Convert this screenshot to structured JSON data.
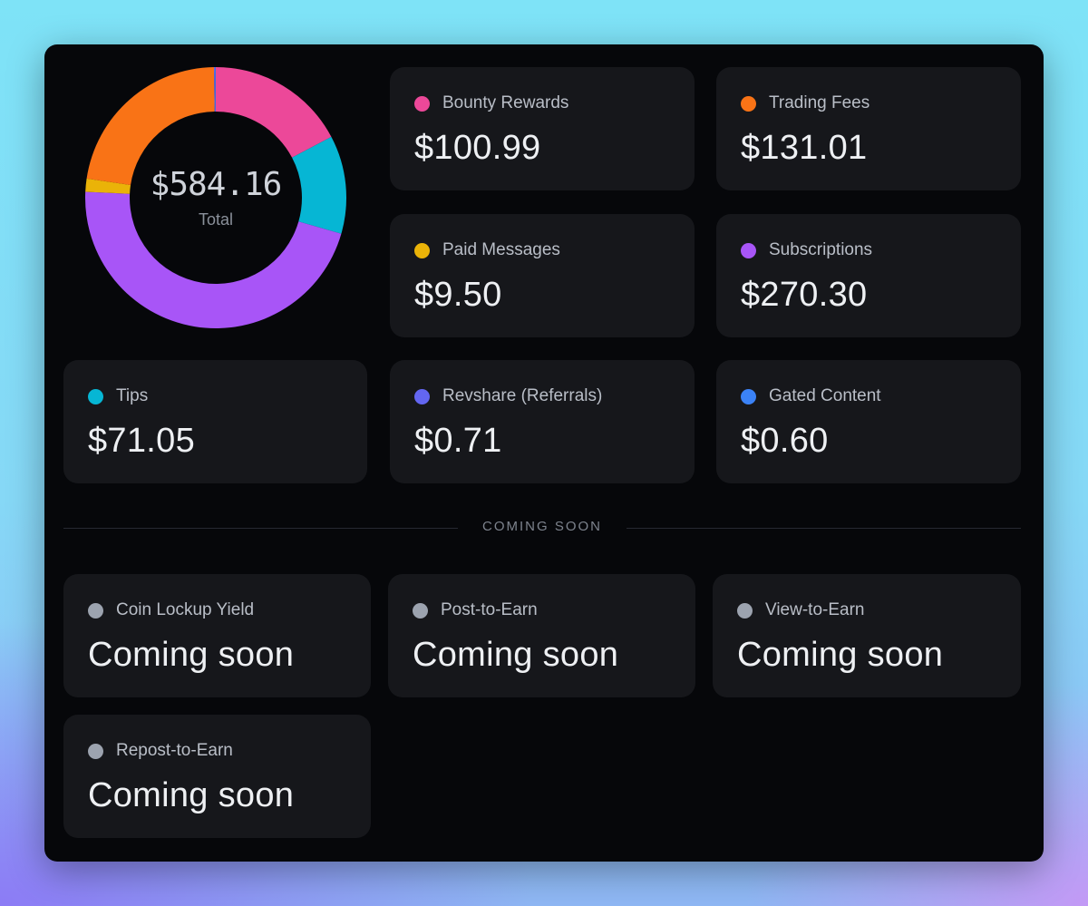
{
  "chart_data": {
    "type": "pie",
    "total_display": "$584.16",
    "total_label": "Total",
    "slices": [
      {
        "name": "Bounty Rewards",
        "value": 100.99,
        "color": "#ec4899"
      },
      {
        "name": "Tips",
        "value": 71.05,
        "color": "#06b6d4"
      },
      {
        "name": "Subscriptions",
        "value": 270.3,
        "color": "#a855f7"
      },
      {
        "name": "Paid Messages",
        "value": 9.5,
        "color": "#eab308"
      },
      {
        "name": "Trading Fees",
        "value": 131.01,
        "color": "#f97316"
      },
      {
        "name": "Revshare (Referrals)",
        "value": 0.71,
        "color": "#6366f1"
      },
      {
        "name": "Gated Content",
        "value": 0.6,
        "color": "#3b82f6"
      }
    ]
  },
  "cards": {
    "bounty": {
      "label": "Bounty Rewards",
      "value": "$100.99",
      "color": "#ec4899"
    },
    "trading": {
      "label": "Trading Fees",
      "value": "$131.01",
      "color": "#f97316"
    },
    "paid": {
      "label": "Paid Messages",
      "value": "$9.50",
      "color": "#eab308"
    },
    "subs": {
      "label": "Subscriptions",
      "value": "$270.30",
      "color": "#a855f7"
    },
    "tips": {
      "label": "Tips",
      "value": "$71.05",
      "color": "#06b6d4"
    },
    "revshare": {
      "label": "Revshare (Referrals)",
      "value": "$0.71",
      "color": "#6366f1"
    },
    "gated": {
      "label": "Gated Content",
      "value": "$0.60",
      "color": "#3b82f6"
    }
  },
  "divider_label": "COMING SOON",
  "soon": {
    "dot_color": "#9ca3af",
    "lockup": {
      "label": "Coin Lockup Yield",
      "value": "Coming soon"
    },
    "post": {
      "label": "Post-to-Earn",
      "value": "Coming soon"
    },
    "view": {
      "label": "View-to-Earn",
      "value": "Coming soon"
    },
    "repost": {
      "label": "Repost-to-Earn",
      "value": "Coming soon"
    }
  }
}
